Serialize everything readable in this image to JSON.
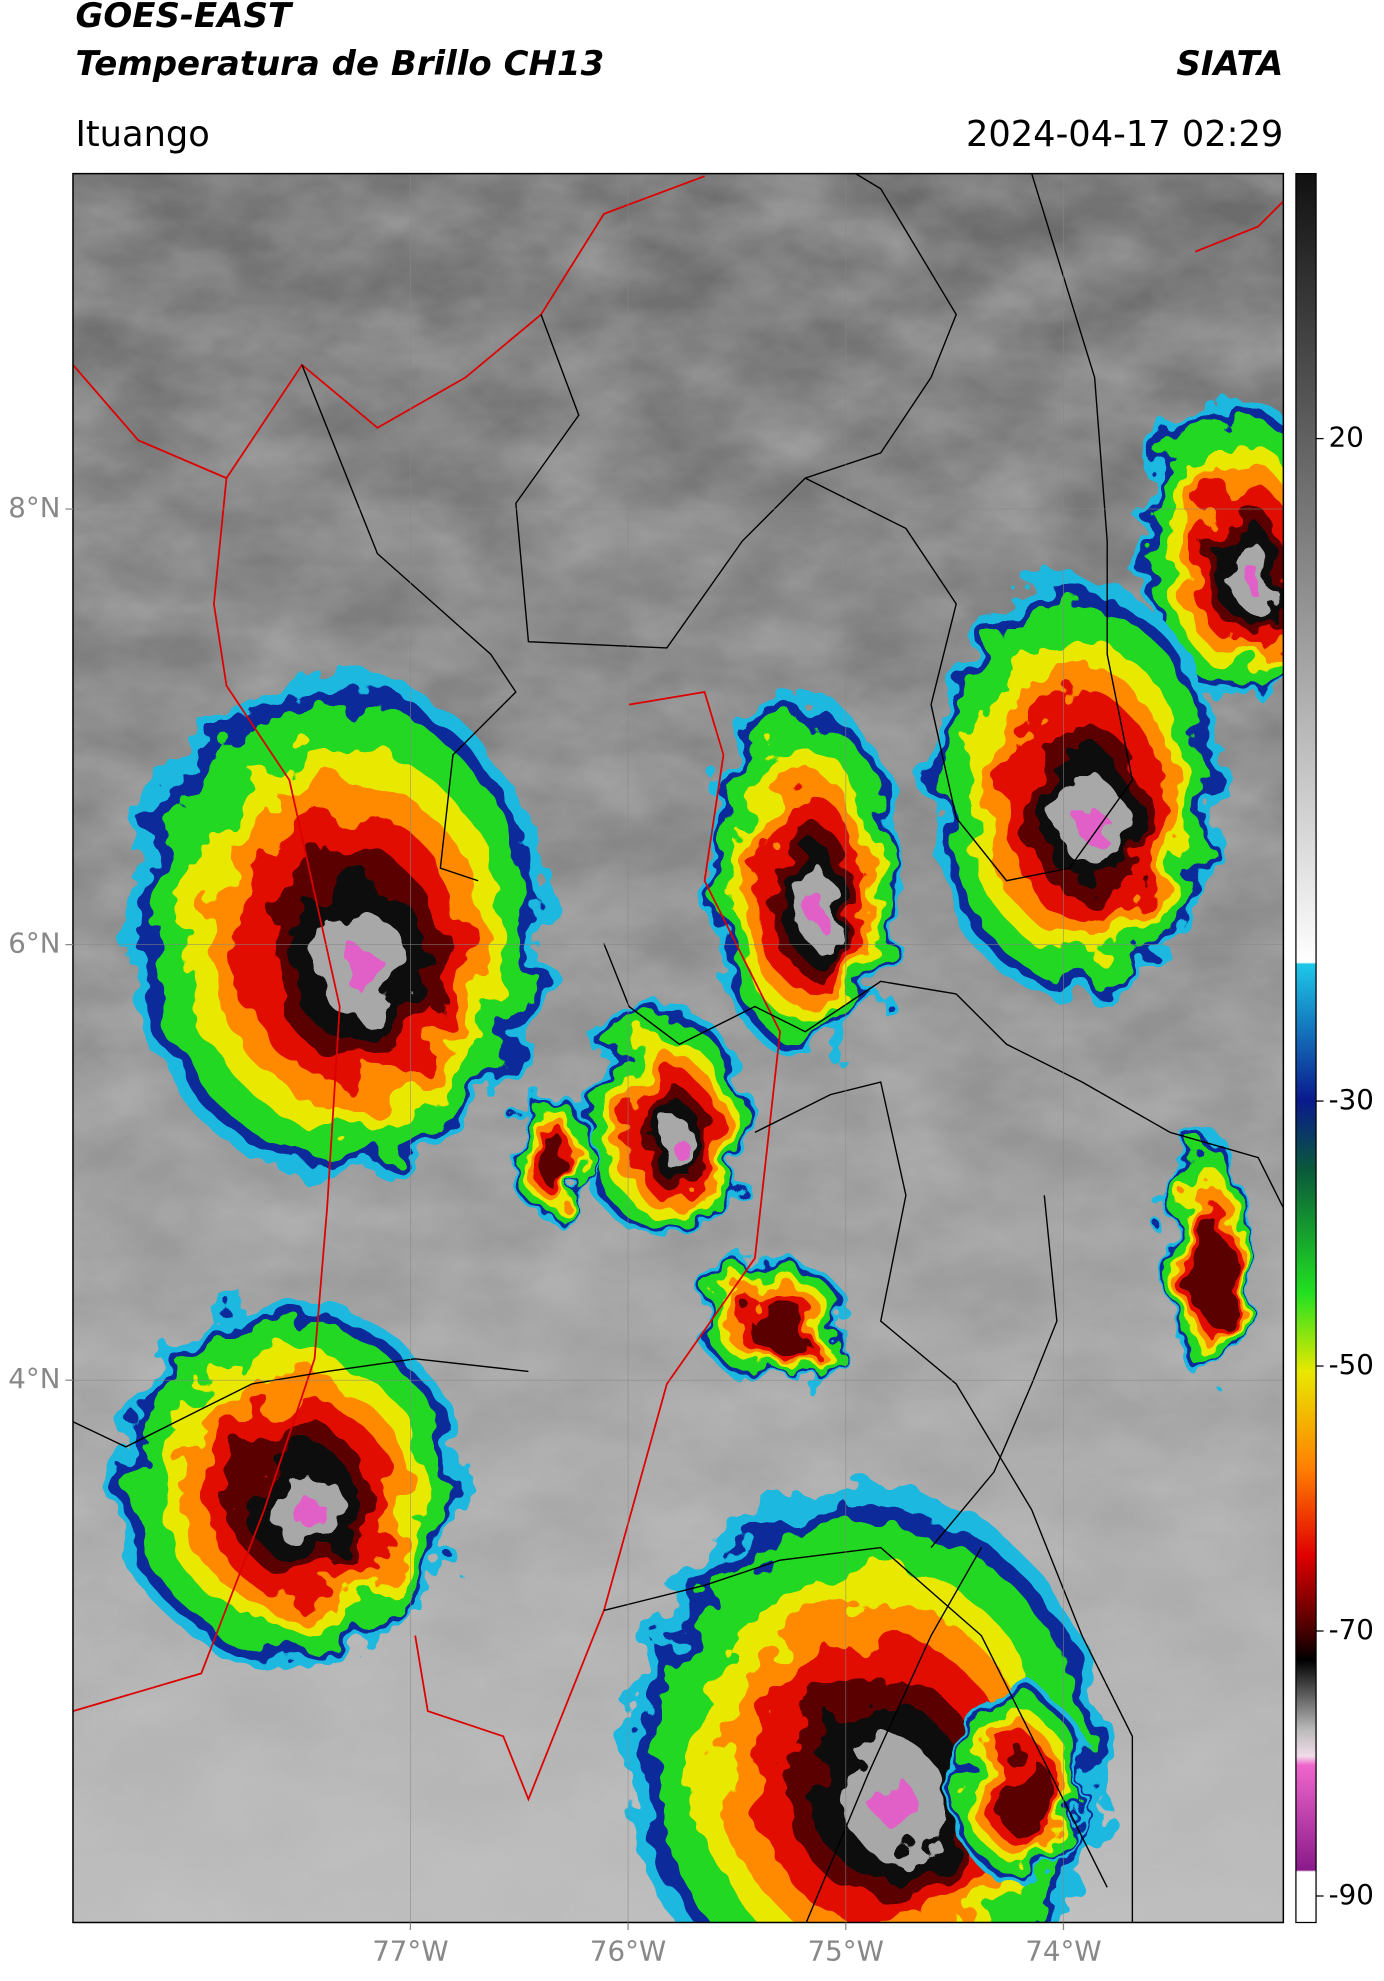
{
  "header": {
    "source": "GOES-EAST",
    "product": "Temperatura de Brillo CH13",
    "agency": "SIATA",
    "region": "Ituango",
    "datetime": "2024-04-17 02:29"
  },
  "map": {
    "lon_lim": [
      -78.55,
      -72.99
    ],
    "lat_lim": [
      1.51,
      9.54
    ],
    "lat_ticks": [
      {
        "value": 8,
        "label": "8°N"
      },
      {
        "value": 6,
        "label": "6°N"
      },
      {
        "value": 4,
        "label": "4°N"
      }
    ],
    "lon_ticks": [
      {
        "value": -77,
        "label": "77°W"
      },
      {
        "value": -76,
        "label": "76°W"
      },
      {
        "value": -75,
        "label": "75°W"
      },
      {
        "value": -74,
        "label": "74°W"
      }
    ],
    "grid": true
  },
  "colorbar": {
    "lim": [
      -92,
      40
    ],
    "ticks": [
      20,
      -30,
      -50,
      -70,
      -90
    ]
  }
}
